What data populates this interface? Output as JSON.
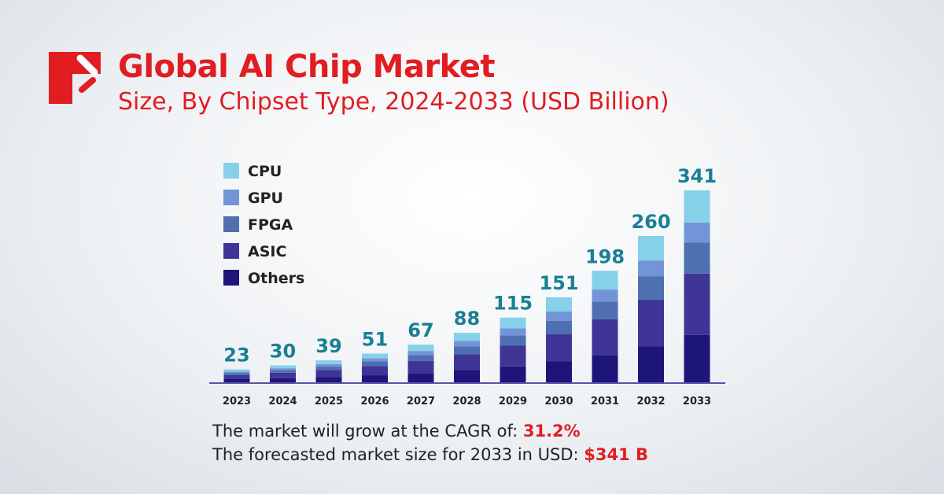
{
  "header": {
    "title": "Global AI Chip Market",
    "subtitle": "Size, By Chipset Type, 2024-2033 (USD Billion)"
  },
  "footer": {
    "cagr_label": "The market will grow at the CAGR of:",
    "cagr_value": "31.2%",
    "forecast_label": "The forecasted market size for 2033 in USD:",
    "forecast_value": "$341 B"
  },
  "chart_data": {
    "type": "bar",
    "stacked": true,
    "title": "",
    "xlabel": "",
    "ylabel": "",
    "categories": [
      "2023",
      "2024",
      "2025",
      "2026",
      "2027",
      "2028",
      "2029",
      "2030",
      "2031",
      "2032",
      "2033"
    ],
    "totals": [
      23,
      30,
      39,
      51,
      67,
      88,
      115,
      151,
      198,
      260,
      341
    ],
    "series": [
      {
        "name": "Others",
        "color": "#1e1578",
        "values": [
          5.6,
          7.4,
          9.6,
          12.5,
          16.4,
          21.6,
          28.2,
          37.0,
          48.5,
          63.7,
          84
        ]
      },
      {
        "name": "ASIC",
        "color": "#3f3597",
        "values": [
          7.4,
          9.6,
          12.5,
          16.3,
          21.4,
          28.2,
          36.8,
          48.3,
          63.4,
          83.2,
          109
        ]
      },
      {
        "name": "FPGA",
        "color": "#4e6fb0",
        "values": [
          3.7,
          4.8,
          6.2,
          8.2,
          10.7,
          14.1,
          18.4,
          24.2,
          31.7,
          41.6,
          55
        ]
      },
      {
        "name": "GPU",
        "color": "#7494d8",
        "values": [
          2.5,
          3.2,
          4.2,
          5.5,
          7.2,
          9.4,
          12.3,
          16.2,
          21.2,
          27.8,
          36
        ]
      },
      {
        "name": "CPU",
        "color": "#86d0ea",
        "values": [
          3.8,
          5.0,
          6.5,
          8.5,
          11.3,
          14.7,
          19.3,
          25.3,
          33.2,
          43.7,
          57
        ]
      }
    ],
    "legend_order": [
      "CPU",
      "GPU",
      "FPGA",
      "ASIC",
      "Others"
    ],
    "legend_placement": "top-left",
    "ylim": [
      0,
      341
    ],
    "grid": false,
    "value_label_color": "#1a7f94"
  }
}
